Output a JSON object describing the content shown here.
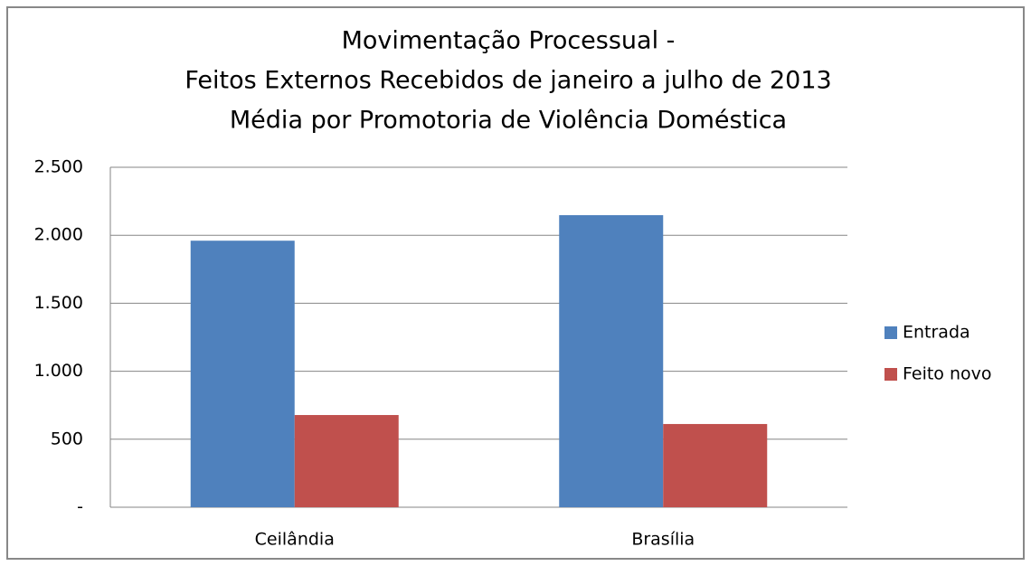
{
  "chart_data": {
    "type": "bar",
    "title": [
      "Movimentação Processual -",
      "Feitos Externos Recebidos de janeiro a julho de 2013",
      "Média por Promotoria  de Violência Doméstica"
    ],
    "categories": [
      "Ceilândia",
      "Brasília"
    ],
    "series": [
      {
        "name": "Entrada",
        "color": "#4f81bd",
        "values": [
          1960,
          2148
        ]
      },
      {
        "name": "Feito novo",
        "color": "#c0504d",
        "values": [
          678,
          612
        ]
      }
    ],
    "ylim": [
      0,
      2500
    ],
    "yticks": [
      {
        "value": 0,
        "label": "-"
      },
      500,
      {
        "value": 1000,
        "label": "1.000"
      },
      {
        "value": 1500,
        "label": "1.500"
      },
      {
        "value": 2000,
        "label": "2.000"
      },
      {
        "value": 2500,
        "label": "2.500"
      }
    ],
    "grid": true,
    "legend": "right"
  }
}
